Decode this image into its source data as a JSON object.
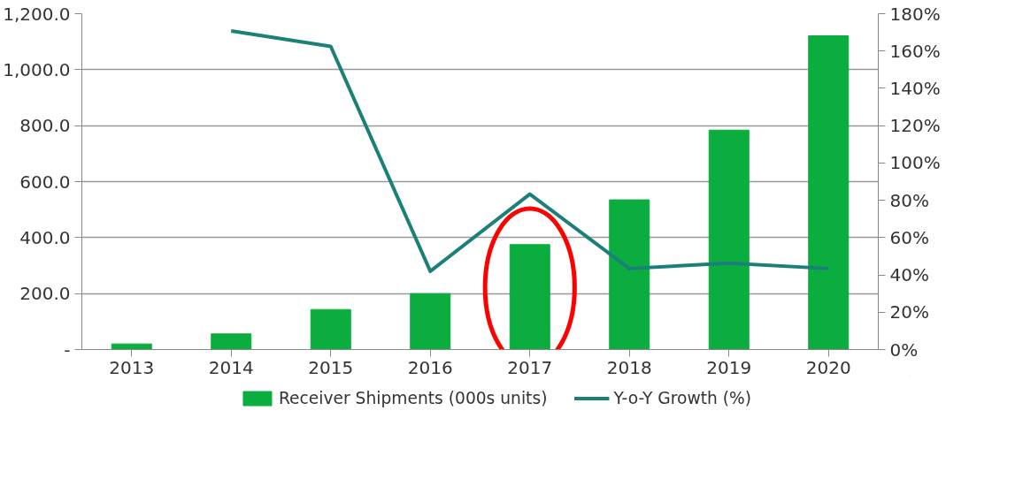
{
  "chart_data": {
    "type": "bar",
    "categories": [
      "2013",
      "2014",
      "2015",
      "2016",
      "2017",
      "2018",
      "2019",
      "2020"
    ],
    "series": [
      {
        "name": "Receiver Shipments (000s units)",
        "color": "#0aad3e",
        "values": [
          20,
          56,
          143,
          200,
          375,
          535,
          784,
          1121
        ]
      },
      {
        "name": "Y-o-Y Growth (%)",
        "type": "line",
        "axis": "y2",
        "color": "#1a8078",
        "values": [
          null,
          170.8,
          162.5,
          42,
          83.3,
          43.4,
          46.3,
          43.4
        ]
      }
    ],
    "ylim": [
      0,
      1200
    ],
    "yticks": [
      {
        "value": 0,
        "label": "-"
      },
      {
        "value": 200,
        "label": "200.0"
      },
      {
        "value": 400,
        "label": "400.0"
      },
      {
        "value": 600,
        "label": "600.0"
      },
      {
        "value": 800,
        "label": "800.0"
      },
      {
        "value": 1000,
        "label": "1,000.0"
      },
      {
        "value": 1200,
        "label": "1,200.0"
      }
    ],
    "y2lim": [
      0,
      180
    ],
    "y2ticks": [
      {
        "value": 0,
        "label": "0%"
      },
      {
        "value": 20,
        "label": "20%"
      },
      {
        "value": 40,
        "label": "40%"
      },
      {
        "value": 60,
        "label": "60%"
      },
      {
        "value": 80,
        "label": "80%"
      },
      {
        "value": 100,
        "label": "100%"
      },
      {
        "value": 120,
        "label": "120%"
      },
      {
        "value": 140,
        "label": "140%"
      },
      {
        "value": 160,
        "label": "160%"
      },
      {
        "value": 180,
        "label": "180%"
      }
    ],
    "grid": "y",
    "legend": "bottom",
    "marker": "none",
    "line_style": "solid"
  }
}
